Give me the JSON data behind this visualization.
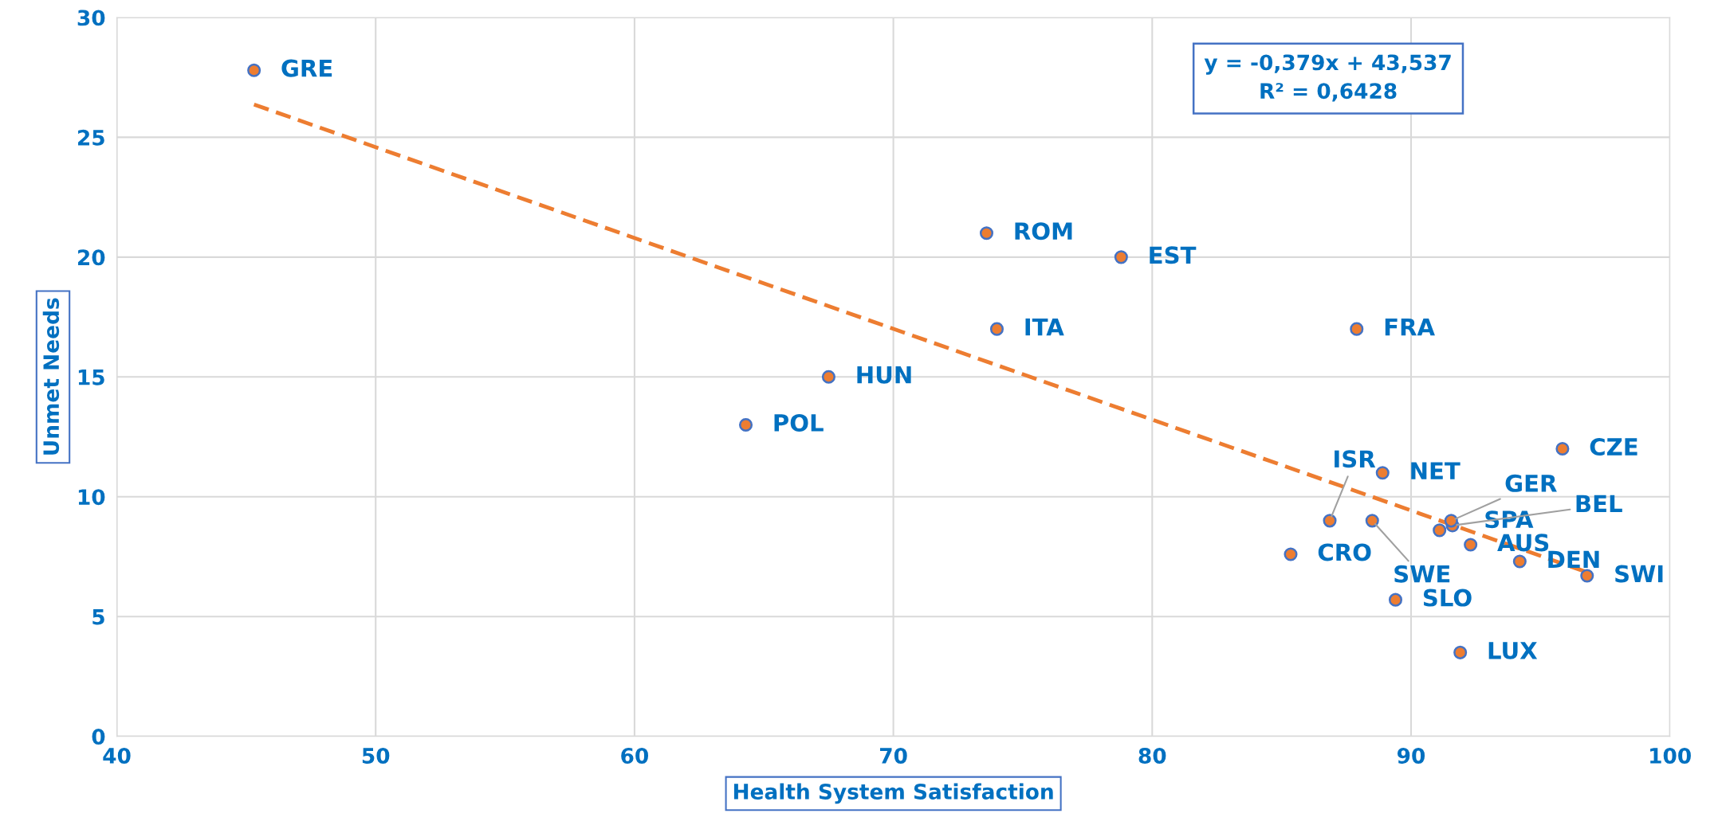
{
  "chart_data": {
    "type": "scatter",
    "xlabel": "Health System Satisfaction",
    "ylabel": "Unmet Needs",
    "xlim": [
      40,
      100
    ],
    "xticks": [
      40,
      50,
      60,
      70,
      80,
      90,
      100
    ],
    "ylim": [
      0,
      30
    ],
    "yticks": [
      0,
      5,
      10,
      15,
      20,
      25,
      30
    ],
    "grid": true,
    "legend": false,
    "series": [
      {
        "marker": "circle",
        "color": "#ed7d31",
        "x": [
          45.3,
          73.6,
          78.8,
          74.0,
          87.9,
          67.5,
          64.3,
          95.85,
          88.9,
          86.86,
          88.5,
          85.35,
          91.55,
          91.1,
          91.6,
          92.3,
          94.2,
          96.8,
          89.4,
          91.9
        ],
        "values": [
          27.8,
          21.0,
          20.0,
          17.0,
          17.0,
          15.0,
          13.0,
          12.0,
          11.0,
          9.0,
          9.0,
          7.6,
          9.0,
          8.6,
          8.8,
          8.0,
          7.3,
          6.7,
          5.7,
          3.5
        ]
      },
      {
        "type": "line",
        "color": "#ed7d31",
        "line_style": "dashed",
        "x": [
          45.3,
          96.8
        ],
        "values": [
          26.37,
          6.85
        ]
      }
    ],
    "annotations": [
      {
        "text": "GRE",
        "x": 45.3,
        "y": 27.8
      },
      {
        "text": "ROM",
        "x": 73.6,
        "y": 21.0
      },
      {
        "text": "EST",
        "x": 78.8,
        "y": 20.0
      },
      {
        "text": "ITA",
        "x": 74.0,
        "y": 17.0
      },
      {
        "text": "FRA",
        "x": 87.9,
        "y": 17.0
      },
      {
        "text": "HUN",
        "x": 67.5,
        "y": 15.0
      },
      {
        "text": "POL",
        "x": 64.3,
        "y": 13.0
      },
      {
        "text": "CZE",
        "x": 95.85,
        "y": 12.0
      },
      {
        "text": "NET",
        "x": 88.9,
        "y": 11.0
      },
      {
        "text": "ISR",
        "x": 86.86,
        "y": 9.0
      },
      {
        "text": "SWE",
        "x": 88.5,
        "y": 9.0
      },
      {
        "text": "CRO",
        "x": 85.35,
        "y": 7.6
      },
      {
        "text": "GER",
        "x": 91.55,
        "y": 9.0
      },
      {
        "text": "SPA",
        "x": 91.1,
        "y": 8.6
      },
      {
        "text": "BEL",
        "x": 91.6,
        "y": 8.8
      },
      {
        "text": "AUS",
        "x": 92.3,
        "y": 8.0
      },
      {
        "text": "DEN",
        "x": 94.2,
        "y": 7.3
      },
      {
        "text": "SWI",
        "x": 96.8,
        "y": 6.7
      },
      {
        "text": "SLO",
        "x": 89.4,
        "y": 5.7
      },
      {
        "text": "LUX",
        "x": 91.9,
        "y": 3.5
      },
      "y = -0,379x + 43,537\nR² = 0,6428"
    ]
  }
}
